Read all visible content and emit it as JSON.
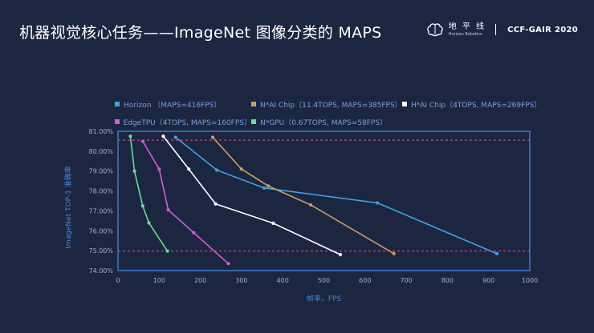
{
  "slide": {
    "title": "机器视觉核心任务——ImageNet 图像分类的 MAPS"
  },
  "brand": {
    "logo_cn": "地 平 线",
    "logo_en": "Horizon Robotics",
    "event": "CCF-GAIR 2020",
    "icon": "brain-icon"
  },
  "chart_data": {
    "type": "line",
    "title": "",
    "xlabel": "帧率，FPS",
    "ylabel": "ImageNet TOP-1 准确率",
    "xlim": [
      0,
      1000
    ],
    "ylim": [
      74,
      81
    ],
    "xticks": [
      0,
      100,
      200,
      300,
      400,
      500,
      600,
      700,
      800,
      900,
      1000
    ],
    "xtick_labels": [
      "0",
      "100",
      "200",
      "300",
      "400",
      "500",
      "600",
      "700",
      "800",
      "900",
      "1000"
    ],
    "yticks": [
      74,
      75,
      76,
      77,
      78,
      79,
      80,
      81
    ],
    "ytick_labels": [
      "74.00%",
      "75.00%",
      "76.00%",
      "77.00%",
      "78.00%",
      "79.00%",
      "80.00%",
      "81.00%"
    ],
    "grid": false,
    "legend_position": "top",
    "reference_lines": [
      80.55,
      74.98
    ],
    "reference_color": "#e05a8a",
    "series": [
      {
        "name": "Horizon （MAPS=416FPS）",
        "color": "#3fa3e8",
        "x": [
          140,
          240,
          355,
          630,
          920
        ],
        "y": [
          80.7,
          79.05,
          78.15,
          77.4,
          74.85
        ]
      },
      {
        "name": "N*AI Chip（11.4TOPS, MAPS=385FPS）",
        "color": "#c9a062",
        "x": [
          230,
          300,
          365,
          468,
          670
        ],
        "y": [
          80.7,
          79.1,
          78.25,
          77.3,
          74.85
        ]
      },
      {
        "name": "H*AI Chip（4TOPS, MAPS=269FPS）",
        "color": "#ffffff",
        "x": [
          110,
          172,
          237,
          377,
          540
        ],
        "y": [
          80.75,
          79.1,
          77.35,
          76.38,
          74.8
        ]
      },
      {
        "name": "EdgeTPU（4TOPS, MAPS=160FPS）",
        "color": "#d85cd8",
        "x": [
          60,
          100,
          122,
          184,
          268
        ],
        "y": [
          80.5,
          79.1,
          77.05,
          75.9,
          74.35
        ]
      },
      {
        "name": "N*GPU（0.67TOPS, MAPS=58FPS）",
        "color": "#6fd89a",
        "x": [
          30,
          40,
          60,
          75,
          120
        ],
        "y": [
          80.75,
          79.0,
          77.25,
          76.4,
          74.98
        ]
      }
    ]
  }
}
